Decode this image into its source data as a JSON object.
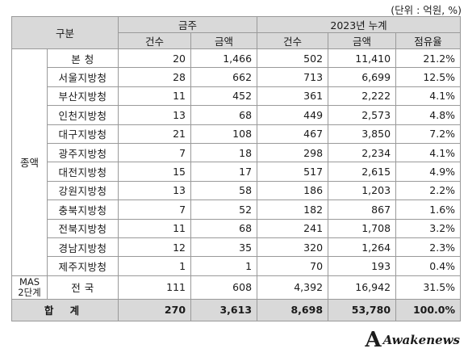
{
  "unit_note": "(단위 : 억원, %)",
  "header": {
    "division": "구분",
    "this_week": "금주",
    "year_total": "2023년 누계",
    "count": "건수",
    "amount": "금액",
    "share": "점유율"
  },
  "side_labels": {
    "group": "종액",
    "mas": "MAS\n2단계"
  },
  "rows": [
    {
      "name": "본 청",
      "wk_count": "20",
      "wk_amount": "1,466",
      "yr_count": "502",
      "yr_amount": "11,410",
      "share": "21.2%"
    },
    {
      "name": "서울지방청",
      "wk_count": "28",
      "wk_amount": "662",
      "yr_count": "713",
      "yr_amount": "6,699",
      "share": "12.5%"
    },
    {
      "name": "부산지방청",
      "wk_count": "11",
      "wk_amount": "452",
      "yr_count": "361",
      "yr_amount": "2,222",
      "share": "4.1%"
    },
    {
      "name": "인천지방청",
      "wk_count": "13",
      "wk_amount": "68",
      "yr_count": "449",
      "yr_amount": "2,573",
      "share": "4.8%"
    },
    {
      "name": "대구지방청",
      "wk_count": "21",
      "wk_amount": "108",
      "yr_count": "467",
      "yr_amount": "3,850",
      "share": "7.2%"
    },
    {
      "name": "광주지방청",
      "wk_count": "7",
      "wk_amount": "18",
      "yr_count": "298",
      "yr_amount": "2,234",
      "share": "4.1%"
    },
    {
      "name": "대전지방청",
      "wk_count": "15",
      "wk_amount": "17",
      "yr_count": "517",
      "yr_amount": "2,615",
      "share": "4.9%"
    },
    {
      "name": "강원지방청",
      "wk_count": "13",
      "wk_amount": "58",
      "yr_count": "186",
      "yr_amount": "1,203",
      "share": "2.2%"
    },
    {
      "name": "충북지방청",
      "wk_count": "7",
      "wk_amount": "52",
      "yr_count": "182",
      "yr_amount": "867",
      "share": "1.6%"
    },
    {
      "name": "전북지방청",
      "wk_count": "11",
      "wk_amount": "68",
      "yr_count": "241",
      "yr_amount": "1,708",
      "share": "3.2%"
    },
    {
      "name": "경남지방청",
      "wk_count": "12",
      "wk_amount": "35",
      "yr_count": "320",
      "yr_amount": "1,264",
      "share": "2.3%"
    },
    {
      "name": "제주지방청",
      "wk_count": "1",
      "wk_amount": "1",
      "yr_count": "70",
      "yr_amount": "193",
      "share": "0.4%"
    }
  ],
  "mas_row": {
    "name": "전 국",
    "wk_count": "111",
    "wk_amount": "608",
    "yr_count": "4,392",
    "yr_amount": "16,942",
    "share": "31.5%"
  },
  "total_row": {
    "label": "합 계",
    "wk_count": "270",
    "wk_amount": "3,613",
    "yr_count": "8,698",
    "yr_amount": "53,780",
    "share": "100.0%"
  },
  "watermark": "Awakenews"
}
